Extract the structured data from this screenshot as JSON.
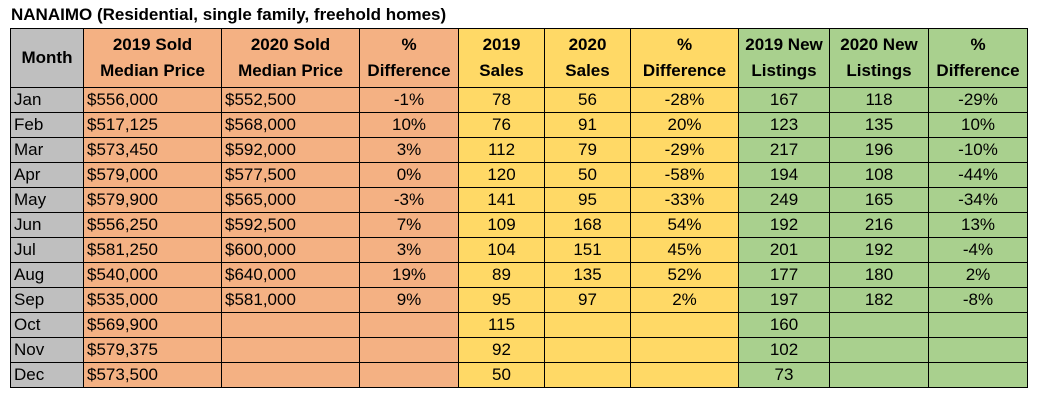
{
  "title": "NANAIMO (Residential, single family, freehold homes)",
  "colors": {
    "month": "#bfbfbf",
    "price": "#f4b183",
    "sales": "#ffd966",
    "listings": "#a9d08e"
  },
  "headers": {
    "month": "Month",
    "price_2019": "2019 Sold Median Price",
    "price_2020": "2020 Sold Median Price",
    "price_diff": "% Difference",
    "sales_2019": "2019 Sales",
    "sales_2020": "2020 Sales",
    "sales_diff": "% Difference",
    "listings_2019": "2019 New Listings",
    "listings_2020": "2020 New Listings",
    "listings_diff": "% Difference"
  },
  "rows": [
    {
      "month": "Jan",
      "price_2019": "$556,000",
      "price_2020": "$552,500",
      "price_diff": "-1%",
      "sales_2019": "78",
      "sales_2020": "56",
      "sales_diff": "-28%",
      "listings_2019": "167",
      "listings_2020": "118",
      "listings_diff": "-29%"
    },
    {
      "month": "Feb",
      "price_2019": "$517,125",
      "price_2020": "$568,000",
      "price_diff": "10%",
      "sales_2019": "76",
      "sales_2020": "91",
      "sales_diff": "20%",
      "listings_2019": "123",
      "listings_2020": "135",
      "listings_diff": "10%"
    },
    {
      "month": "Mar",
      "price_2019": "$573,450",
      "price_2020": "$592,000",
      "price_diff": "3%",
      "sales_2019": "112",
      "sales_2020": "79",
      "sales_diff": "-29%",
      "listings_2019": "217",
      "listings_2020": "196",
      "listings_diff": "-10%"
    },
    {
      "month": "Apr",
      "price_2019": "$579,000",
      "price_2020": "$577,500",
      "price_diff": "0%",
      "sales_2019": "120",
      "sales_2020": "50",
      "sales_diff": "-58%",
      "listings_2019": "194",
      "listings_2020": "108",
      "listings_diff": "-44%"
    },
    {
      "month": "May",
      "price_2019": "$579,900",
      "price_2020": "$565,000",
      "price_diff": "-3%",
      "sales_2019": "141",
      "sales_2020": "95",
      "sales_diff": "-33%",
      "listings_2019": "249",
      "listings_2020": "165",
      "listings_diff": "-34%"
    },
    {
      "month": "Jun",
      "price_2019": "$556,250",
      "price_2020": "$592,500",
      "price_diff": "7%",
      "sales_2019": "109",
      "sales_2020": "168",
      "sales_diff": "54%",
      "listings_2019": "192",
      "listings_2020": "216",
      "listings_diff": "13%"
    },
    {
      "month": "Jul",
      "price_2019": "$581,250",
      "price_2020": "$600,000",
      "price_diff": "3%",
      "sales_2019": "104",
      "sales_2020": "151",
      "sales_diff": "45%",
      "listings_2019": "201",
      "listings_2020": "192",
      "listings_diff": "-4%"
    },
    {
      "month": "Aug",
      "price_2019": "$540,000",
      "price_2020": "$640,000",
      "price_diff": "19%",
      "sales_2019": "89",
      "sales_2020": "135",
      "sales_diff": "52%",
      "listings_2019": "177",
      "listings_2020": "180",
      "listings_diff": "2%"
    },
    {
      "month": "Sep",
      "price_2019": "$535,000",
      "price_2020": "$581,000",
      "price_diff": "9%",
      "sales_2019": "95",
      "sales_2020": "97",
      "sales_diff": "2%",
      "listings_2019": "197",
      "listings_2020": "182",
      "listings_diff": "-8%"
    },
    {
      "month": "Oct",
      "price_2019": "$569,900",
      "price_2020": "",
      "price_diff": "",
      "sales_2019": "115",
      "sales_2020": "",
      "sales_diff": "",
      "listings_2019": "160",
      "listings_2020": "",
      "listings_diff": ""
    },
    {
      "month": "Nov",
      "price_2019": "$579,375",
      "price_2020": "",
      "price_diff": "",
      "sales_2019": "92",
      "sales_2020": "",
      "sales_diff": "",
      "listings_2019": "102",
      "listings_2020": "",
      "listings_diff": ""
    },
    {
      "month": "Dec",
      "price_2019": "$573,500",
      "price_2020": "",
      "price_diff": "",
      "sales_2019": "50",
      "sales_2020": "",
      "sales_diff": "",
      "listings_2019": "73",
      "listings_2020": "",
      "listings_diff": ""
    }
  ]
}
